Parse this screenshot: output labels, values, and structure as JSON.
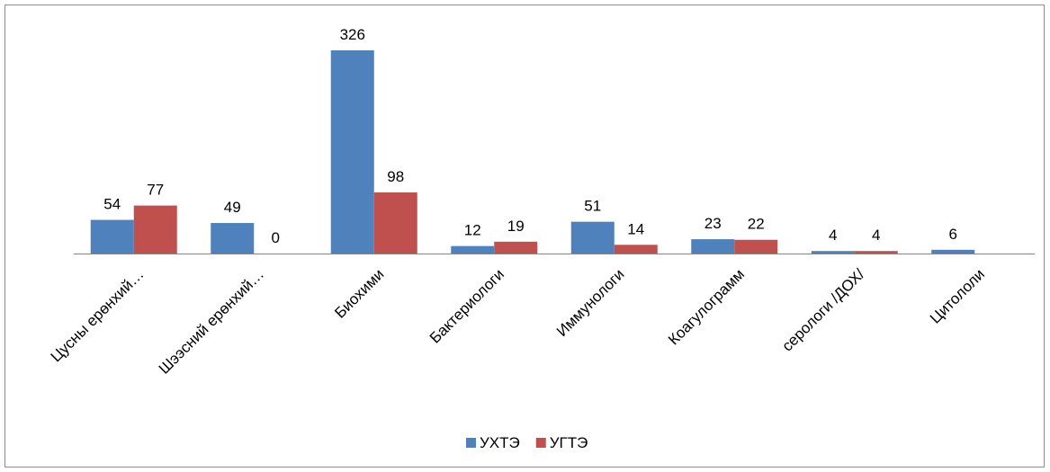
{
  "chart_data": {
    "type": "bar",
    "categories": [
      "Цусны ерөнхий…",
      "Шээсний ерөнхий…",
      "Биохими",
      "Бактериологи",
      "Иммунологи",
      "Коагулограмм",
      "серологи /ДОХ/",
      "Цитололи"
    ],
    "series": [
      {
        "name": "УХТЭ",
        "color": "#4f81bd",
        "values": [
          54,
          49,
          326,
          12,
          51,
          23,
          4,
          6
        ]
      },
      {
        "name": "УГТЭ",
        "color": "#c0504d",
        "values": [
          77,
          0,
          98,
          19,
          14,
          22,
          4,
          null
        ]
      }
    ],
    "legend": "bottom"
  }
}
